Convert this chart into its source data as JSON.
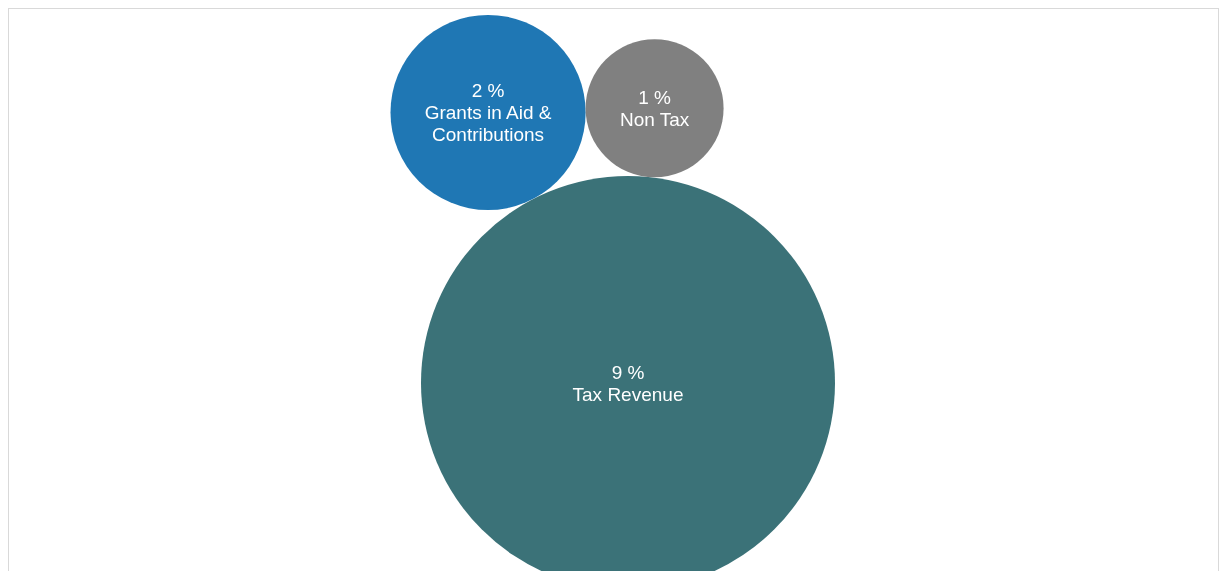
{
  "chart_data": {
    "type": "other",
    "categories": [
      "Tax Revenue",
      "Grants in Aid & Contributions",
      "Non Tax"
    ],
    "values": [
      9,
      2,
      1
    ],
    "value_labels": [
      "9 %",
      "2 %",
      "1 %"
    ],
    "colors": [
      "#3b7278",
      "#1f77b4",
      "#808080"
    ]
  }
}
